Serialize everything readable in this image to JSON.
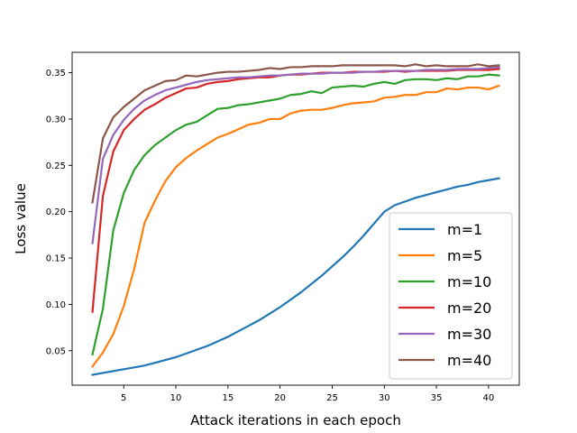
{
  "chart_data": {
    "type": "line",
    "title": "",
    "xlabel": "Attack iterations in each epoch",
    "ylabel": "Loss value",
    "xlim": [
      0.05,
      42.95
    ],
    "ylim": [
      0.0128,
      0.372
    ],
    "xticks": [
      5,
      10,
      15,
      20,
      25,
      30,
      35,
      40
    ],
    "yticks": [
      0.05,
      0.1,
      0.15,
      0.2,
      0.25,
      0.3,
      0.35
    ],
    "ytick_labels": [
      "0.05",
      "0.10",
      "0.15",
      "0.20",
      "0.25",
      "0.30",
      "0.35"
    ],
    "grid": false,
    "legend_position": "lower-right",
    "x": [
      2,
      3,
      4,
      5,
      6,
      7,
      8,
      9,
      10,
      11,
      12,
      13,
      14,
      15,
      16,
      17,
      18,
      19,
      20,
      21,
      22,
      23,
      24,
      25,
      26,
      27,
      28,
      29,
      30,
      31,
      32,
      33,
      34,
      35,
      36,
      37,
      38,
      39,
      40,
      41
    ],
    "series": [
      {
        "name": "m=1",
        "color": "#1f77b4",
        "values": [
          0.024,
          0.026,
          0.028,
          0.03,
          0.032,
          0.034,
          0.037,
          0.04,
          0.043,
          0.047,
          0.051,
          0.055,
          0.06,
          0.065,
          0.071,
          0.077,
          0.083,
          0.09,
          0.097,
          0.105,
          0.113,
          0.122,
          0.131,
          0.141,
          0.151,
          0.162,
          0.174,
          0.187,
          0.2,
          0.207,
          0.211,
          0.215,
          0.218,
          0.221,
          0.224,
          0.227,
          0.229,
          0.232,
          0.234,
          0.236
        ]
      },
      {
        "name": "m=5",
        "color": "#ff7f0e",
        "values": [
          0.033,
          0.048,
          0.068,
          0.098,
          0.138,
          0.188,
          0.212,
          0.233,
          0.248,
          0.258,
          0.266,
          0.273,
          0.28,
          0.284,
          0.289,
          0.294,
          0.296,
          0.3,
          0.3,
          0.306,
          0.309,
          0.31,
          0.31,
          0.312,
          0.315,
          0.317,
          0.318,
          0.319,
          0.323,
          0.324,
          0.326,
          0.326,
          0.329,
          0.329,
          0.333,
          0.332,
          0.334,
          0.334,
          0.332,
          0.336
        ]
      },
      {
        "name": "m=10",
        "color": "#2ca02c",
        "values": [
          0.046,
          0.095,
          0.18,
          0.22,
          0.245,
          0.261,
          0.272,
          0.28,
          0.288,
          0.294,
          0.297,
          0.304,
          0.311,
          0.312,
          0.315,
          0.316,
          0.318,
          0.32,
          0.322,
          0.326,
          0.327,
          0.33,
          0.328,
          0.334,
          0.335,
          0.336,
          0.335,
          0.338,
          0.34,
          0.338,
          0.342,
          0.343,
          0.343,
          0.342,
          0.344,
          0.343,
          0.346,
          0.346,
          0.348,
          0.347
        ]
      },
      {
        "name": "m=20",
        "color": "#d62728",
        "values": [
          0.092,
          0.217,
          0.265,
          0.288,
          0.3,
          0.31,
          0.316,
          0.323,
          0.328,
          0.333,
          0.334,
          0.338,
          0.34,
          0.341,
          0.343,
          0.344,
          0.345,
          0.345,
          0.347,
          0.348,
          0.348,
          0.349,
          0.35,
          0.35,
          0.35,
          0.351,
          0.351,
          0.351,
          0.351,
          0.352,
          0.351,
          0.352,
          0.352,
          0.352,
          0.352,
          0.353,
          0.353,
          0.353,
          0.353,
          0.354
        ]
      },
      {
        "name": "m=30",
        "color": "#9467bd",
        "values": [
          0.166,
          0.257,
          0.283,
          0.299,
          0.311,
          0.32,
          0.326,
          0.331,
          0.334,
          0.337,
          0.34,
          0.342,
          0.343,
          0.344,
          0.345,
          0.345,
          0.346,
          0.347,
          0.347,
          0.348,
          0.349,
          0.349,
          0.349,
          0.35,
          0.35,
          0.35,
          0.351,
          0.351,
          0.352,
          0.352,
          0.352,
          0.352,
          0.353,
          0.353,
          0.353,
          0.354,
          0.354,
          0.354,
          0.355,
          0.356
        ]
      },
      {
        "name": "m=40",
        "color": "#8c564b",
        "values": [
          0.21,
          0.279,
          0.302,
          0.313,
          0.322,
          0.331,
          0.336,
          0.341,
          0.342,
          0.347,
          0.346,
          0.348,
          0.35,
          0.351,
          0.351,
          0.352,
          0.353,
          0.355,
          0.354,
          0.356,
          0.356,
          0.357,
          0.357,
          0.357,
          0.358,
          0.358,
          0.358,
          0.358,
          0.358,
          0.358,
          0.357,
          0.359,
          0.357,
          0.358,
          0.357,
          0.357,
          0.357,
          0.359,
          0.357,
          0.358
        ]
      }
    ]
  }
}
